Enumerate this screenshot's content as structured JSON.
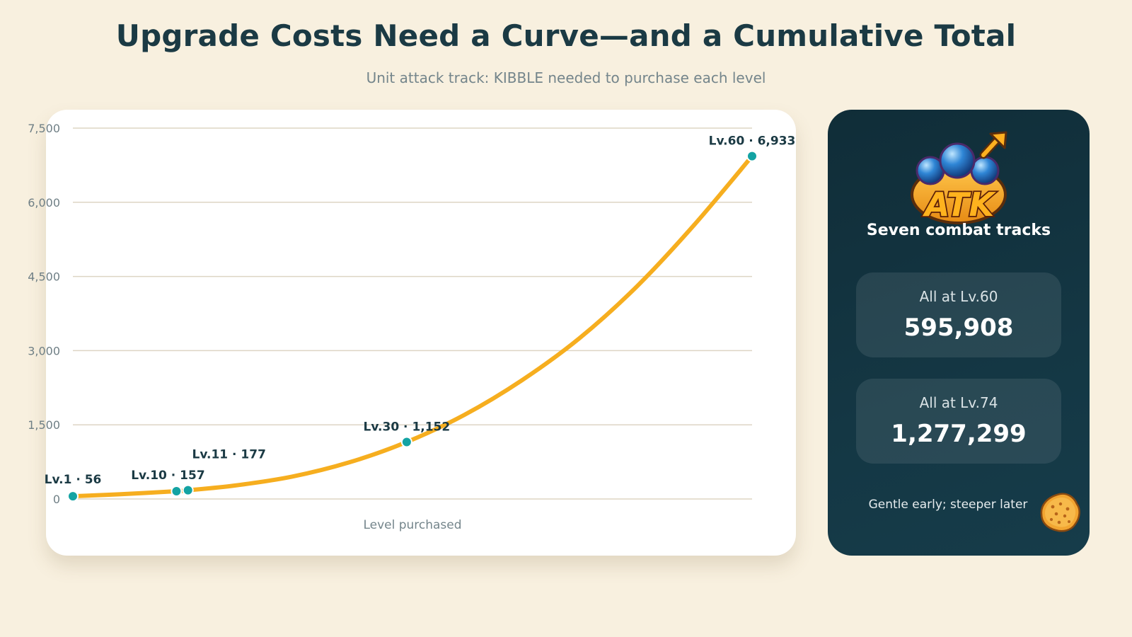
{
  "header": {
    "title": "Upgrade Costs Need a Curve—and a Cumulative Total",
    "subtitle": "Unit attack track: KIBBLE needed to purchase each level"
  },
  "chart_data": {
    "type": "line",
    "title": "",
    "xlabel": "Level purchased",
    "ylabel": "",
    "xlim": [
      1,
      60
    ],
    "ylim": [
      0,
      7500
    ],
    "yticks": [
      0,
      1500,
      3000,
      4500,
      6000,
      7500
    ],
    "ytick_labels": [
      "0",
      "1,500",
      "3,000",
      "4,500",
      "6,000",
      "7,500"
    ],
    "grid": true,
    "line_color": "#f6ae1f",
    "point_color": "#14a3a3",
    "curve_points": [
      {
        "x": 1,
        "y": 56
      },
      {
        "x": 5,
        "y": 95
      },
      {
        "x": 10,
        "y": 157
      },
      {
        "x": 11,
        "y": 177
      },
      {
        "x": 15,
        "y": 270
      },
      {
        "x": 20,
        "y": 450
      },
      {
        "x": 25,
        "y": 740
      },
      {
        "x": 30,
        "y": 1152
      },
      {
        "x": 35,
        "y": 1700
      },
      {
        "x": 40,
        "y": 2400
      },
      {
        "x": 45,
        "y": 3250
      },
      {
        "x": 50,
        "y": 4300
      },
      {
        "x": 55,
        "y": 5550
      },
      {
        "x": 60,
        "y": 6933
      }
    ],
    "highlighted_points": [
      {
        "x": 1,
        "y": 56,
        "label": "Lv.1 · 56"
      },
      {
        "x": 10,
        "y": 157,
        "label": "Lv.10 · 157"
      },
      {
        "x": 11,
        "y": 177,
        "label": "Lv.11 · 177"
      },
      {
        "x": 30,
        "y": 1152,
        "label": "Lv.30 · 1,152"
      },
      {
        "x": 60,
        "y": 6933,
        "label": "Lv.60 · 6,933"
      }
    ]
  },
  "side_panel": {
    "badge_text": "ATK",
    "heading": "Seven combat tracks",
    "stats": [
      {
        "label": "All at Lv.60",
        "value": "595,908"
      },
      {
        "label": "All at Lv.74",
        "value": "1,277,299"
      }
    ],
    "footnote": "Gentle early; steeper later"
  },
  "icons": {
    "badge": "attack-upgrade-badge-icon",
    "kibble": "kibble-coin-icon"
  }
}
